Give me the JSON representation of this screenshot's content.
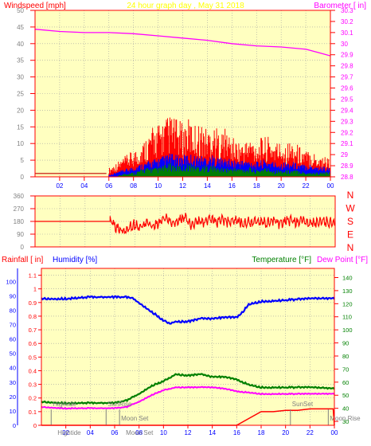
{
  "title": "24 hour graph day , May 31 2018",
  "x_ticks": [
    "02",
    "04",
    "06",
    "08",
    "10",
    "12",
    "14",
    "16",
    "18",
    "20",
    "22",
    "00"
  ],
  "colors": {
    "plot_bg": "#ffffc0",
    "frame": "#ff0000",
    "grid": "#a0a0a0",
    "red": "#ff0000",
    "blue": "#0000ff",
    "green": "#008000",
    "magenta": "#ff00ff",
    "title_yellow": "#ffff00",
    "label_green": "#008000",
    "dark_red": "#c00000"
  },
  "chart_data": [
    {
      "type": "bar",
      "name": "wind-barometer-panel",
      "ylabel_left": "Windspeed [mph]",
      "ylabel_right": "Barometer [ in]",
      "ylim_left": [
        0,
        50
      ],
      "ylim_right": [
        28.8,
        30.3
      ],
      "yticks_left": [
        "0",
        "5",
        "10",
        "15",
        "20",
        "25",
        "30",
        "35",
        "40",
        "45",
        "50"
      ],
      "yticks_right": [
        "28.8",
        "28.9",
        "29",
        "29.1",
        "29.2",
        "29.3",
        "29.4",
        "29.5",
        "29.6",
        "29.7",
        "29.8",
        "29.9",
        "30",
        "30.1",
        "30.2",
        "30.3"
      ],
      "xlim": [
        0,
        24
      ],
      "gust_bars": {
        "x": [
          0,
          1,
          2,
          3,
          4,
          5,
          6,
          6.5,
          7,
          7.5,
          8,
          8.5,
          9,
          9.5,
          10,
          10.5,
          11,
          11.5,
          12,
          12.5,
          13,
          13.5,
          14,
          14.5,
          15,
          15.5,
          16,
          16.5,
          17,
          17.5,
          18,
          18.5,
          19,
          19.5,
          20,
          20.5,
          21,
          21.5,
          22,
          22.5,
          23,
          23.5,
          24
        ],
        "values": [
          1,
          1,
          1,
          1,
          1,
          1,
          2,
          3,
          4,
          5,
          6,
          7,
          9,
          11,
          12,
          13,
          14,
          13,
          12,
          13,
          12,
          12,
          11,
          12,
          10,
          11,
          9,
          8,
          8,
          9,
          8,
          9,
          9,
          8,
          8,
          8,
          8,
          7,
          6,
          6,
          5,
          5,
          4
        ]
      },
      "avg_bars": {
        "x": [
          0,
          1,
          2,
          3,
          4,
          5,
          6,
          6.5,
          7,
          7.5,
          8,
          8.5,
          9,
          9.5,
          10,
          10.5,
          11,
          11.5,
          12,
          12.5,
          13,
          13.5,
          14,
          14.5,
          15,
          15.5,
          16,
          16.5,
          17,
          17.5,
          18,
          18.5,
          19,
          19.5,
          20,
          20.5,
          21,
          21.5,
          22,
          22.5,
          23,
          23.5,
          24
        ],
        "values": [
          0,
          0,
          0,
          0,
          0,
          0,
          0.5,
          1,
          1.5,
          2,
          2.5,
          3,
          3.5,
          4,
          4.5,
          5,
          5.5,
          5,
          5,
          5.5,
          5,
          5,
          5,
          5,
          4.5,
          4.5,
          4,
          4,
          4,
          4,
          3.5,
          4,
          4,
          3.5,
          3.5,
          3.5,
          3.5,
          3,
          3,
          3,
          2.5,
          2.5,
          2
        ]
      },
      "min_bars": {
        "x": [
          0,
          1,
          2,
          3,
          4,
          5,
          6,
          6.5,
          7,
          7.5,
          8,
          8.5,
          9,
          9.5,
          10,
          10.5,
          11,
          11.5,
          12,
          12.5,
          13,
          13.5,
          14,
          14.5,
          15,
          15.5,
          16,
          16.5,
          17,
          17.5,
          18,
          18.5,
          19,
          19.5,
          20,
          20.5,
          21,
          21.5,
          22,
          22.5,
          23,
          23.5,
          24
        ],
        "values": [
          0,
          0,
          0,
          0,
          0,
          0,
          0,
          0,
          0.5,
          1,
          1,
          1.5,
          2,
          2,
          2,
          2.5,
          3,
          2.5,
          2.5,
          3,
          2.5,
          2.5,
          2.5,
          2.5,
          2,
          2,
          2,
          2,
          2,
          2,
          1.5,
          2,
          2,
          1.5,
          1.5,
          1.5,
          1.5,
          1.5,
          1,
          1,
          1,
          1,
          1
        ]
      },
      "barometer": {
        "x": [
          0,
          2,
          4,
          6,
          8,
          10,
          12,
          14,
          16,
          18,
          20,
          22,
          23,
          24
        ],
        "values": [
          30.13,
          30.11,
          30.1,
          30.1,
          30.09,
          30.07,
          30.05,
          30.03,
          30.0,
          29.98,
          29.97,
          29.95,
          29.92,
          29.89
        ]
      }
    },
    {
      "type": "line",
      "name": "wind-direction-panel",
      "ylim": [
        0,
        360
      ],
      "yticks": [
        "0",
        "90",
        "180",
        "270",
        "360"
      ],
      "compass_labels": [
        "N",
        "W",
        "S",
        "E",
        "N"
      ],
      "xlim": [
        0,
        24
      ],
      "direction": {
        "x": [
          0,
          2,
          4,
          6,
          6.5,
          7,
          7.5,
          8,
          8.5,
          9,
          9.5,
          10,
          10.5,
          11,
          11.5,
          12,
          12.5,
          13,
          13.5,
          14,
          14.5,
          15,
          15.5,
          16,
          16.5,
          17,
          17.5,
          18,
          18.5,
          19,
          19.5,
          20,
          20.5,
          21,
          21.5,
          22,
          22.5,
          23,
          23.5,
          24
        ],
        "values": [
          180,
          180,
          180,
          180,
          130,
          120,
          145,
          160,
          150,
          170,
          140,
          175,
          200,
          160,
          185,
          210,
          150,
          195,
          175,
          205,
          160,
          190,
          170,
          185,
          165,
          180,
          175,
          185,
          170,
          190,
          165,
          175,
          185,
          165,
          190,
          175,
          170,
          195,
          170,
          180
        ]
      }
    },
    {
      "type": "line",
      "name": "rain-humidity-temp-panel",
      "ylabel_rain": "Rainfall [ in]",
      "ylabel_humidity": "Humidity [%]",
      "ylabel_temp": "Temperature [°F]",
      "ylabel_dew": "Dew Point [°F]",
      "humidity_ticks": [
        "0",
        "10",
        "20",
        "30",
        "40",
        "50",
        "60",
        "70",
        "80",
        "90",
        "100"
      ],
      "rain_ticks": [
        "0",
        "0.1",
        "0.2",
        "0.3",
        "0.4",
        "0.5",
        "0.6",
        "0.7",
        "0.8",
        "0.9",
        "1",
        "1.1"
      ],
      "rain_ylim": [
        0,
        1.15
      ],
      "temp_ticks": [
        "30",
        "40",
        "50",
        "60",
        "70",
        "80",
        "90",
        "100",
        "110",
        "120",
        "130",
        "140"
      ],
      "temp_ylim": [
        27,
        147
      ],
      "xlim": [
        0,
        24
      ],
      "humidity": {
        "x": [
          0,
          2,
          4,
          6,
          7,
          7.5,
          8,
          8.5,
          9,
          9.5,
          10,
          10.5,
          11,
          12,
          13,
          14,
          15,
          16,
          16.5,
          17,
          18,
          20,
          22,
          24
        ],
        "values": [
          88,
          88,
          89,
          89,
          89,
          88,
          85,
          82,
          79,
          76,
          73,
          71,
          72,
          72,
          74,
          74,
          75,
          75,
          79,
          84,
          86,
          87,
          88,
          88
        ]
      },
      "temperature": {
        "x": [
          0,
          2,
          4,
          6,
          7,
          8,
          9,
          10,
          11,
          12,
          13,
          14,
          15,
          16,
          17,
          18,
          20,
          22,
          24
        ],
        "values": [
          45,
          44,
          44,
          44,
          46,
          51,
          57,
          61,
          66,
          65,
          66,
          64,
          64,
          62,
          58,
          56,
          56,
          56,
          55
        ]
      },
      "dew_point": {
        "x": [
          0,
          2,
          4,
          6,
          7,
          8,
          9,
          10,
          11,
          12,
          13,
          14,
          15,
          16,
          17,
          18,
          20,
          22,
          24
        ],
        "values": [
          41,
          40,
          40,
          40,
          41,
          45,
          50,
          54,
          56,
          56,
          56,
          56,
          55,
          53,
          52,
          51,
          51,
          51,
          51
        ]
      },
      "rainfall": {
        "x": [
          0,
          16,
          17,
          18,
          19,
          20,
          21,
          22,
          23,
          23.9,
          24
        ],
        "values": [
          0,
          0,
          0.05,
          0.1,
          0.1,
          0.11,
          0.11,
          0.12,
          0.12,
          0.12,
          0
        ]
      },
      "events": [
        {
          "label": "Hightide",
          "x": 0.8
        },
        {
          "label": "SunRise",
          "x": 5.3
        },
        {
          "label": "Moon Set",
          "x": 6.4
        },
        {
          "label": "SunSet",
          "x": 20.4
        },
        {
          "label": "Moon Rise",
          "x": 23.5
        }
      ],
      "bottom_labels": [
        {
          "label": "Hightide",
          "x": 0.8
        },
        {
          "label": "Moon Set",
          "x": 6.4
        }
      ]
    }
  ]
}
